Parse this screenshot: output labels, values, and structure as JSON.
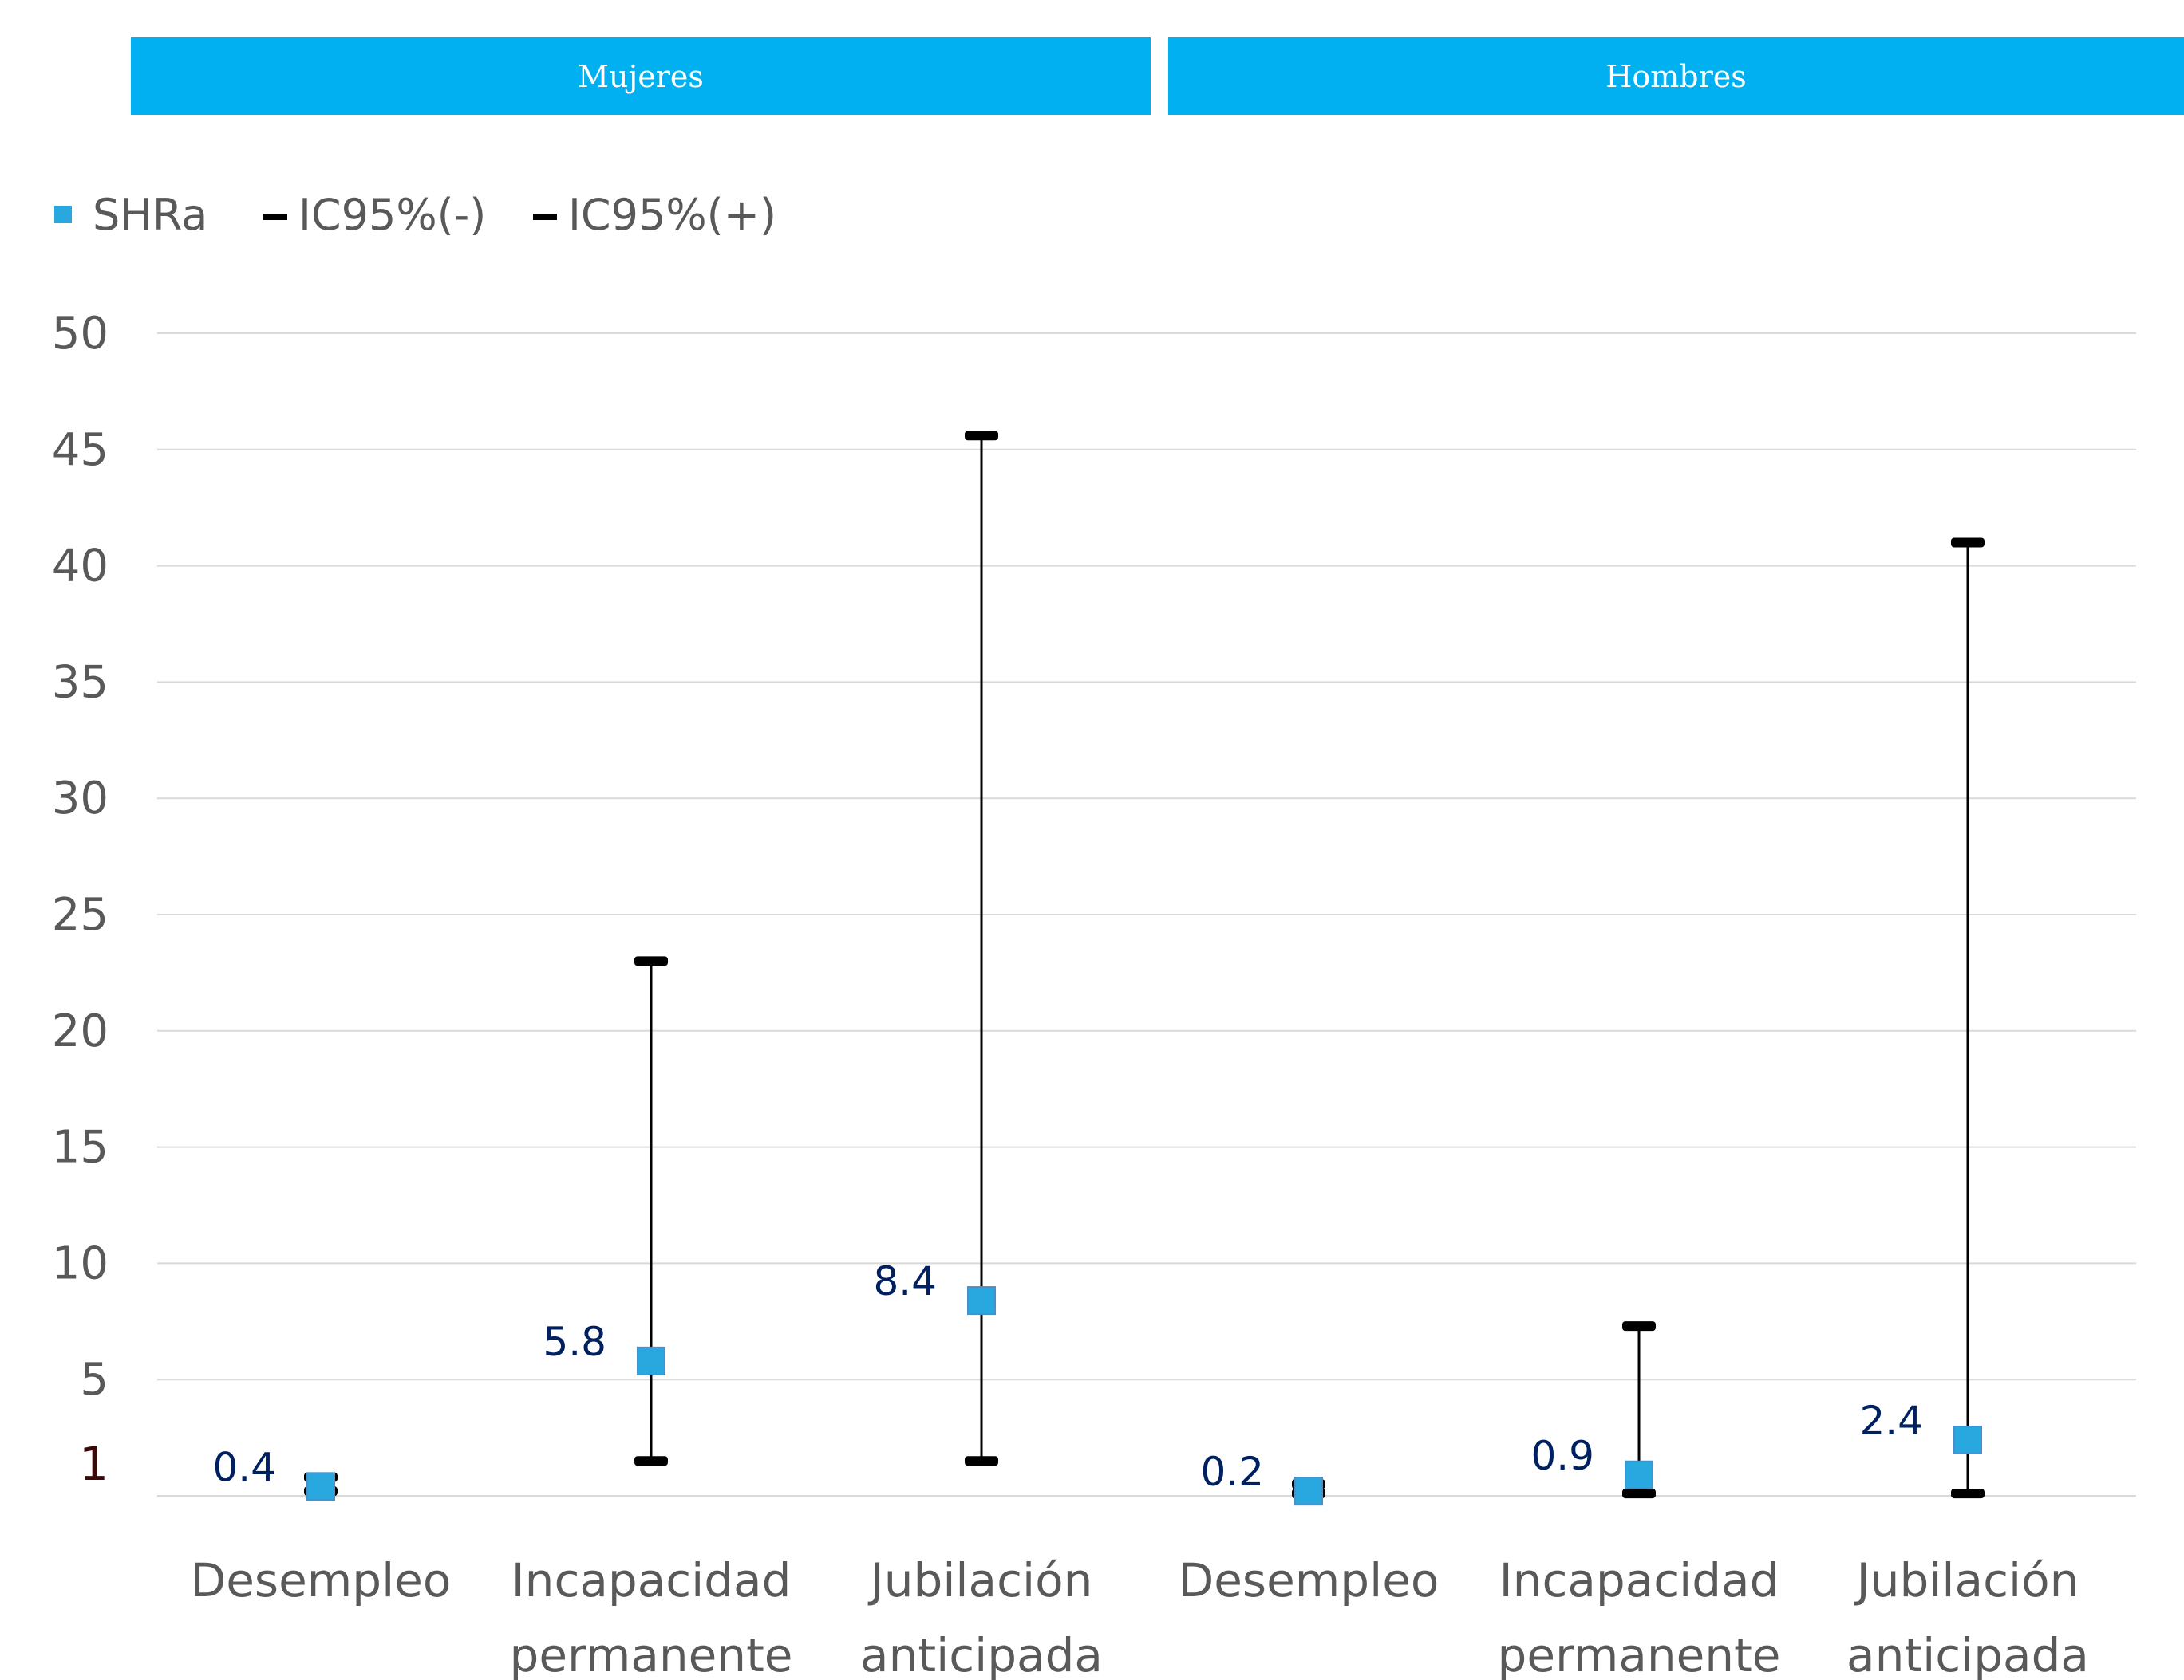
{
  "panels": {
    "women": "Mujeres",
    "men": "Hombres"
  },
  "legend": {
    "items": [
      {
        "label": "SHRa",
        "color": "#29a8e0",
        "marker": "square"
      },
      {
        "label": "IC95%(-)",
        "color": "#000000",
        "marker": "dash"
      },
      {
        "label": "IC95%(+)",
        "color": "#000000",
        "marker": "dash"
      }
    ],
    "placement": "top-left"
  },
  "chart_data": {
    "type": "scatter",
    "categories": [
      "Desempleo",
      "Incapacidad permanente",
      "Jubilación anticipada",
      "Desempleo",
      "Incapacidad permanente",
      "Jubilación anticipada"
    ],
    "groups": [
      "Mujeres",
      "Mujeres",
      "Mujeres",
      "Hombres",
      "Hombres",
      "Hombres"
    ],
    "series": [
      {
        "name": "SHRa",
        "values": [
          0.4,
          5.8,
          8.4,
          0.2,
          0.9,
          2.4
        ],
        "labels": [
          "0.4",
          "5.8",
          "8.4",
          "0.2",
          "0.9",
          "2.4"
        ]
      },
      {
        "name": "IC95%(-)",
        "values": [
          0.2,
          1.5,
          1.5,
          0.1,
          0.1,
          0.1
        ]
      },
      {
        "name": "IC95%(+)",
        "values": [
          0.8,
          23.0,
          45.6,
          0.5,
          7.3,
          41.0
        ]
      }
    ],
    "yticks": [
      "50",
      "45",
      "40",
      "35",
      "30",
      "25",
      "20",
      "15",
      "10",
      "5"
    ],
    "extra_ytick": "1",
    "ylim": [
      0,
      50
    ],
    "grid": true,
    "colors": {
      "marker": "#29a8e0",
      "label": "#002060",
      "axis_text": "#595959",
      "grid": "#d9d9d9",
      "ci": "#000000",
      "extra_tick": "#3a0a0a"
    }
  }
}
